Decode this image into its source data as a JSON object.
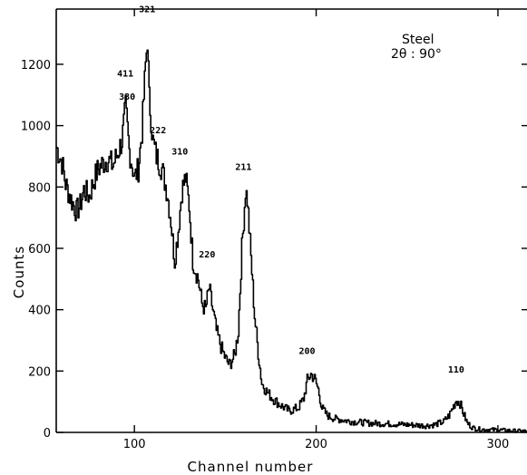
{
  "chart_data": {
    "type": "line",
    "title": "",
    "xlabel": "Channel number",
    "ylabel": "Counts",
    "xlim": [
      57,
      316
    ],
    "ylim": [
      0,
      1380
    ],
    "xticks": [
      100,
      200,
      300
    ],
    "yticks": [
      0,
      200,
      400,
      600,
      800,
      1000,
      1200
    ],
    "grid": false,
    "annotation": {
      "line1": "Steel",
      "line2": "2θ : 90°"
    },
    "peak_labels": [
      {
        "text": "321",
        "x": 107,
        "y": 1370
      },
      {
        "text": "411",
        "x": 95,
        "y": 1160
      },
      {
        "text": "330",
        "x": 96,
        "y": 1085
      },
      {
        "text": "222",
        "x": 113,
        "y": 975
      },
      {
        "text": "310",
        "x": 125,
        "y": 905
      },
      {
        "text": "220",
        "x": 140,
        "y": 570
      },
      {
        "text": "211",
        "x": 160,
        "y": 855
      },
      {
        "text": "200",
        "x": 195,
        "y": 255
      },
      {
        "text": "110",
        "x": 277,
        "y": 195
      }
    ],
    "series": [
      {
        "x": [
          57,
          60,
          62,
          65,
          68,
          70,
          72,
          75,
          78,
          80,
          83,
          85,
          88,
          90,
          93,
          95,
          97,
          100,
          102,
          104,
          106,
          107,
          108,
          110,
          112,
          115,
          118,
          120,
          122,
          124,
          126,
          128,
          130,
          132,
          135,
          137,
          139,
          141,
          143,
          145,
          148,
          150,
          152,
          155,
          157,
          159,
          161,
          162,
          164,
          166,
          168,
          170,
          173,
          176,
          180,
          185,
          190,
          193,
          195,
          197,
          199,
          201,
          203,
          206,
          210,
          220,
          230,
          240,
          250,
          260,
          265,
          270,
          273,
          275,
          277,
          279,
          281,
          283,
          286,
          290,
          300,
          310,
          316
        ],
        "y": [
          930,
          880,
          810,
          760,
          720,
          740,
          790,
          770,
          830,
          860,
          880,
          890,
          870,
          900,
          950,
          1060,
          920,
          830,
          860,
          980,
          1200,
          1280,
          1090,
          950,
          900,
          860,
          780,
          690,
          560,
          660,
          790,
          830,
          740,
          560,
          500,
          420,
          400,
          470,
          400,
          330,
          270,
          240,
          220,
          250,
          330,
          600,
          790,
          760,
          570,
          380,
          260,
          160,
          130,
          110,
          90,
          70,
          80,
          110,
          170,
          190,
          175,
          140,
          80,
          55,
          45,
          35,
          30,
          28,
          25,
          22,
          25,
          35,
          55,
          80,
          105,
          95,
          60,
          30,
          15,
          10,
          8,
          5,
          4
        ]
      }
    ]
  }
}
